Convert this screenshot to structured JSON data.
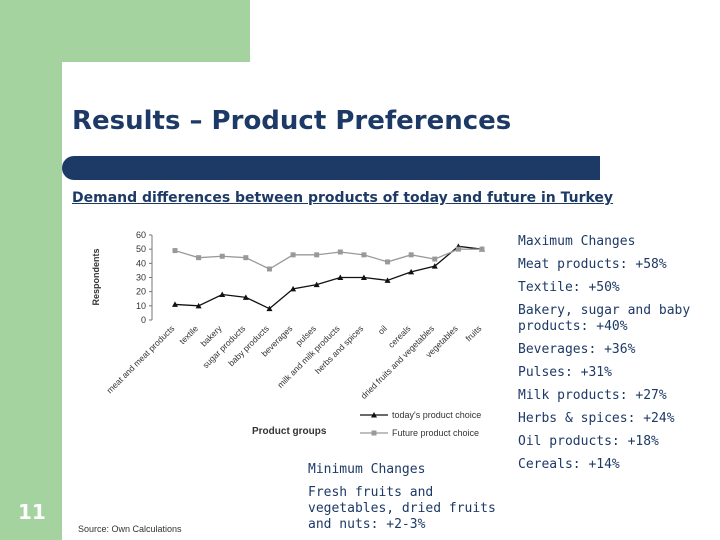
{
  "slide": {
    "title": "Results – Product Preferences",
    "subtitle": "Demand differences between products of today and future in Turkey",
    "page_number": "11",
    "source": "Source: Own Calculations"
  },
  "max_changes": {
    "heading": "Maximum Changes",
    "items": [
      "Meat products: +58%",
      "Textile: +50%",
      "Bakery, sugar and baby products: +40%",
      "Beverages: +36%",
      "Pulses: +31%",
      "Milk products: +27%",
      "Herbs & spices: +24%",
      "Oil products: +18%",
      "Cereals: +14%"
    ]
  },
  "min_changes": {
    "heading": "Minimum Changes",
    "items": [
      "Fresh fruits and vegetables, dried fruits and nuts: +2-3%"
    ]
  },
  "colors": {
    "navy": "#1d3a66",
    "green": "#a5d3a0",
    "today_series": "#111111",
    "future_series": "#999999"
  },
  "chart_data": {
    "type": "line",
    "xlabel": "Product groups",
    "ylabel": "Respondents",
    "ylim": [
      0,
      60
    ],
    "yticks": [
      0,
      10,
      20,
      30,
      40,
      50,
      60
    ],
    "ytick_labels": [
      "0",
      "10",
      "20",
      "30",
      "40",
      "50",
      "60"
    ],
    "grid": false,
    "legend_position": "bottom-right",
    "categories": [
      "meat and meat products",
      "textile",
      "bakery",
      "sugar products",
      "baby products",
      "beverages",
      "pulses",
      "milk and milk products",
      "herbs and spices",
      "oil",
      "cereals",
      "dried fruits and vegetables",
      "vegetables",
      "fruits"
    ],
    "series": [
      {
        "name": "today's product choice",
        "marker": "triangle",
        "values": [
          11,
          10,
          18,
          16,
          8,
          22,
          25,
          30,
          30,
          28,
          34,
          38,
          52,
          50
        ]
      },
      {
        "name": "Future product choice",
        "marker": "square",
        "values": [
          49,
          44,
          45,
          44,
          36,
          46,
          46,
          48,
          46,
          41,
          46,
          43,
          50,
          50
        ]
      }
    ]
  }
}
